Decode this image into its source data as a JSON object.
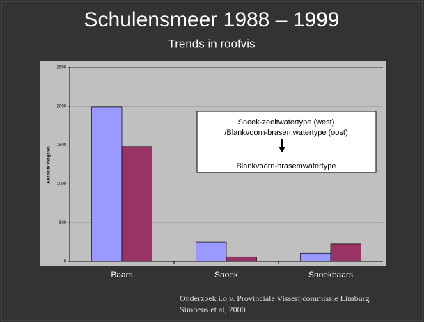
{
  "chart_data": {
    "type": "bar",
    "title": "Schulensmeer 1988 – 1999",
    "subtitle": "Trends in roofvis",
    "y_label": "Absolute vangsten",
    "categories": [
      "Baars",
      "Snoek",
      "Snoekbaars"
    ],
    "series": [
      {
        "color": "#9999ff",
        "values": [
          1990,
          250,
          105
        ]
      },
      {
        "color": "#993366",
        "values": [
          1480,
          60,
          225
        ]
      }
    ],
    "ylim": [
      0,
      2500
    ],
    "yticks": [
      0,
      500,
      1000,
      1500,
      2000,
      2500
    ],
    "grid": true,
    "annotation": [
      "Snoek-zeeltwatertype (west)",
      "/Blankvoorn-brasemwatertype (oost)",
      "Blankvoorn-brasemwatertype"
    ],
    "source": [
      "Onderzoek i.o.v. Provinciale Visserijcommissie Limburg",
      "Simoens et al, 2000"
    ]
  }
}
